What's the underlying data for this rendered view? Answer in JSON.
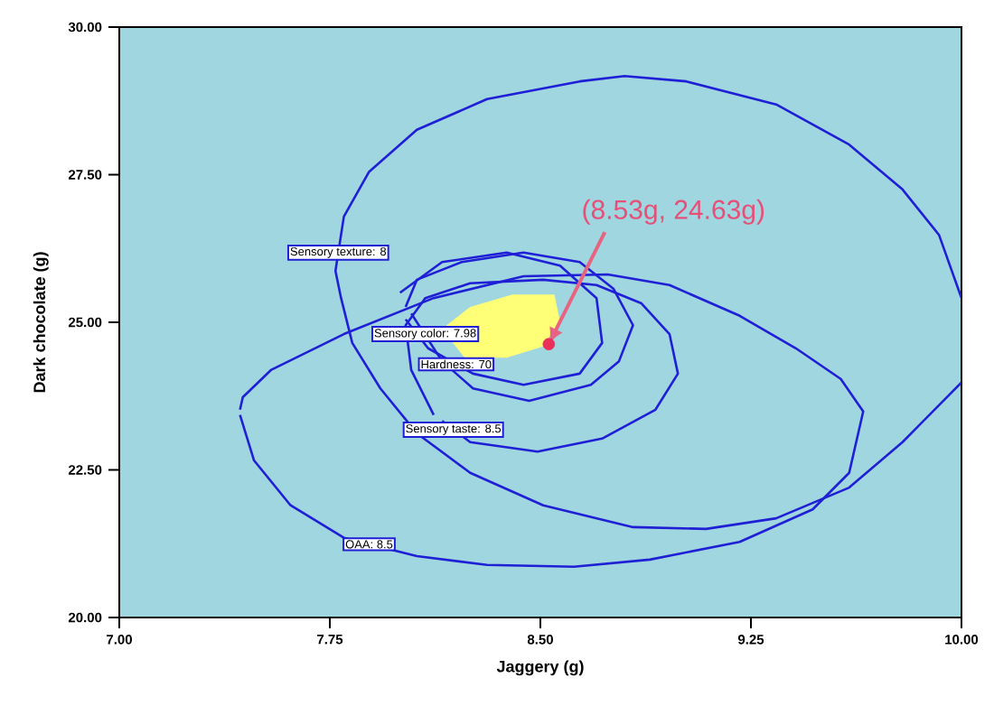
{
  "chart_data": {
    "type": "line",
    "xlabel": "Jaggery (g)",
    "ylabel": "Dark chocolate (g)",
    "xlim": [
      7,
      10
    ],
    "ylim": [
      20,
      30
    ],
    "xticks": [
      {
        "value": 7,
        "label": "7.00"
      },
      {
        "value": 7.75,
        "label": "7.75"
      },
      {
        "value": 8.5,
        "label": "8.50"
      },
      {
        "value": 9.25,
        "label": "9.25"
      },
      {
        "value": 10,
        "label": "10.00"
      }
    ],
    "yticks": [
      {
        "value": 20,
        "label": "20.00"
      },
      {
        "value": 22.5,
        "label": "22.50"
      },
      {
        "value": 25,
        "label": "25.00"
      },
      {
        "value": 27.5,
        "label": "27.50"
      },
      {
        "value": 30,
        "label": "30.00"
      }
    ],
    "series": [
      {
        "type": "area",
        "color": "#ffff77",
        "x": [
          8.15,
          8.25,
          8.4,
          8.55,
          8.57,
          8.51,
          8.38,
          8.23
        ],
        "values": [
          24.89,
          25.26,
          25.47,
          25.47,
          25.02,
          24.59,
          24.4,
          24.4
        ]
      },
      {
        "color": "#1f1fd6",
        "x": [
          10.0,
          9.79,
          9.6,
          9.34,
          9.09,
          8.83,
          8.51,
          8.25,
          8.06,
          7.93,
          7.83,
          7.79,
          7.77,
          7.8,
          7.89,
          8.06,
          8.31,
          8.64,
          8.8,
          9.02,
          9.34,
          9.6,
          9.79,
          9.92,
          10.0
        ],
        "values": [
          23.98,
          22.97,
          22.2,
          21.68,
          21.5,
          21.53,
          21.9,
          22.45,
          23.12,
          23.88,
          24.65,
          25.41,
          25.87,
          26.79,
          27.55,
          28.26,
          28.78,
          29.08,
          29.17,
          29.08,
          28.69,
          28.01,
          27.25,
          26.48,
          25.41
        ]
      },
      {
        "color": "#1f1fd6",
        "x": [
          7.43,
          7.48,
          7.61,
          7.8,
          8.06,
          8.31,
          8.62,
          8.89,
          9.21,
          9.47,
          9.6,
          9.65,
          9.57,
          9.41,
          9.21,
          8.96,
          8.74,
          8.44,
          8.12,
          7.8,
          7.54,
          7.44,
          7.43
        ],
        "values": [
          23.43,
          22.66,
          21.9,
          21.35,
          21.04,
          20.89,
          20.86,
          20.98,
          21.28,
          21.83,
          22.45,
          23.49,
          24.04,
          24.56,
          25.11,
          25.63,
          25.81,
          25.78,
          25.41,
          24.8,
          24.19,
          23.73,
          23.52
        ]
      },
      {
        "color": "#1f1fd6",
        "x": [
          8.12,
          8.04,
          8.02,
          8.09,
          8.25,
          8.51,
          8.7,
          8.86,
          8.96,
          8.99,
          8.91,
          8.72,
          8.49,
          8.25,
          8.15
        ],
        "values": [
          23.43,
          24.19,
          24.95,
          25.41,
          25.66,
          25.72,
          25.63,
          25.32,
          24.8,
          24.13,
          23.52,
          23.03,
          22.81,
          22.97,
          23.33
        ]
      },
      {
        "color": "#1f1fd6",
        "x": [
          8.02,
          8.06,
          8.22,
          8.44,
          8.64,
          8.76,
          8.83,
          8.78,
          8.68,
          8.46,
          8.26,
          8.15,
          8.04
        ],
        "values": [
          25.26,
          25.72,
          26.02,
          26.18,
          26.02,
          25.57,
          24.95,
          24.34,
          23.94,
          23.67,
          23.88,
          24.34,
          25.15
        ]
      },
      {
        "color": "#1f1fd6",
        "x": [
          8.0,
          8.15,
          8.38,
          8.57,
          8.7,
          8.72,
          8.64,
          8.44,
          8.26,
          8.1,
          8.02
        ],
        "values": [
          25.5,
          26.02,
          26.18,
          25.96,
          25.41,
          24.65,
          24.13,
          23.94,
          24.13,
          24.56,
          25.05
        ]
      },
      {
        "type": "scatter",
        "color": "#e8305a",
        "x": [
          8.53
        ],
        "values": [
          24.63
        ]
      }
    ],
    "annotations": [
      {
        "text": "Sensory texture: 8",
        "x": 7.78,
        "y": 26.18
      },
      {
        "text": "Sensory color: 7.98",
        "x": 8.09,
        "y": 24.8
      },
      {
        "text": "Hardness: 70",
        "x": 8.2,
        "y": 24.29
      },
      {
        "text": "Sensory taste: 8.5",
        "x": 8.19,
        "y": 23.18
      },
      {
        "text": "OAA: 8.5",
        "x": 7.89,
        "y": 21.24
      },
      {
        "text": "(8.53g, 24.63g)",
        "x": 8.53,
        "y": 24.63
      }
    ],
    "grid": false
  }
}
